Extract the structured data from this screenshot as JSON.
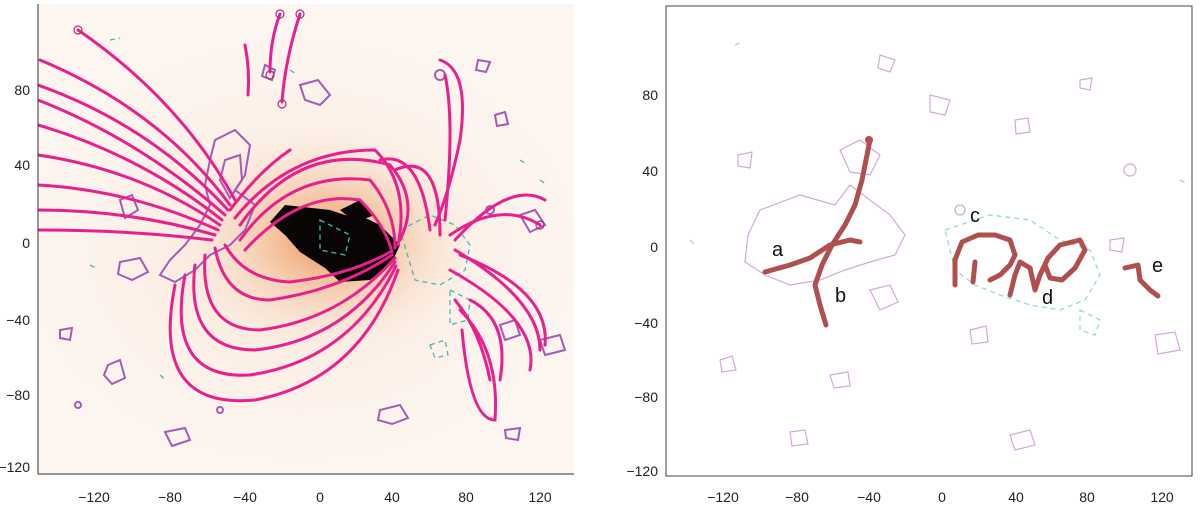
{
  "panels": [
    {
      "id": "left",
      "x_ticks": [
        "−120",
        "−80",
        "−40",
        "0",
        "40",
        "80",
        "120"
      ],
      "y_ticks": [
        "80",
        "40",
        "0",
        "−40",
        "−80",
        "−120"
      ]
    },
    {
      "id": "right",
      "x_ticks": [
        "−120",
        "−80",
        "−40",
        "0",
        "40",
        "80",
        "120"
      ],
      "y_ticks": [
        "80",
        "40",
        "0",
        "−40",
        "−80",
        "−120"
      ],
      "filament_labels": [
        "a",
        "b",
        "c",
        "d",
        "e"
      ]
    }
  ],
  "colors": {
    "field_lines": "#ea1f8e",
    "positive_contours": "#a45bb8",
    "negative_contours": "#43b8b0",
    "filaments": "#b0504e",
    "euv_background": "#f2c9a8"
  }
}
